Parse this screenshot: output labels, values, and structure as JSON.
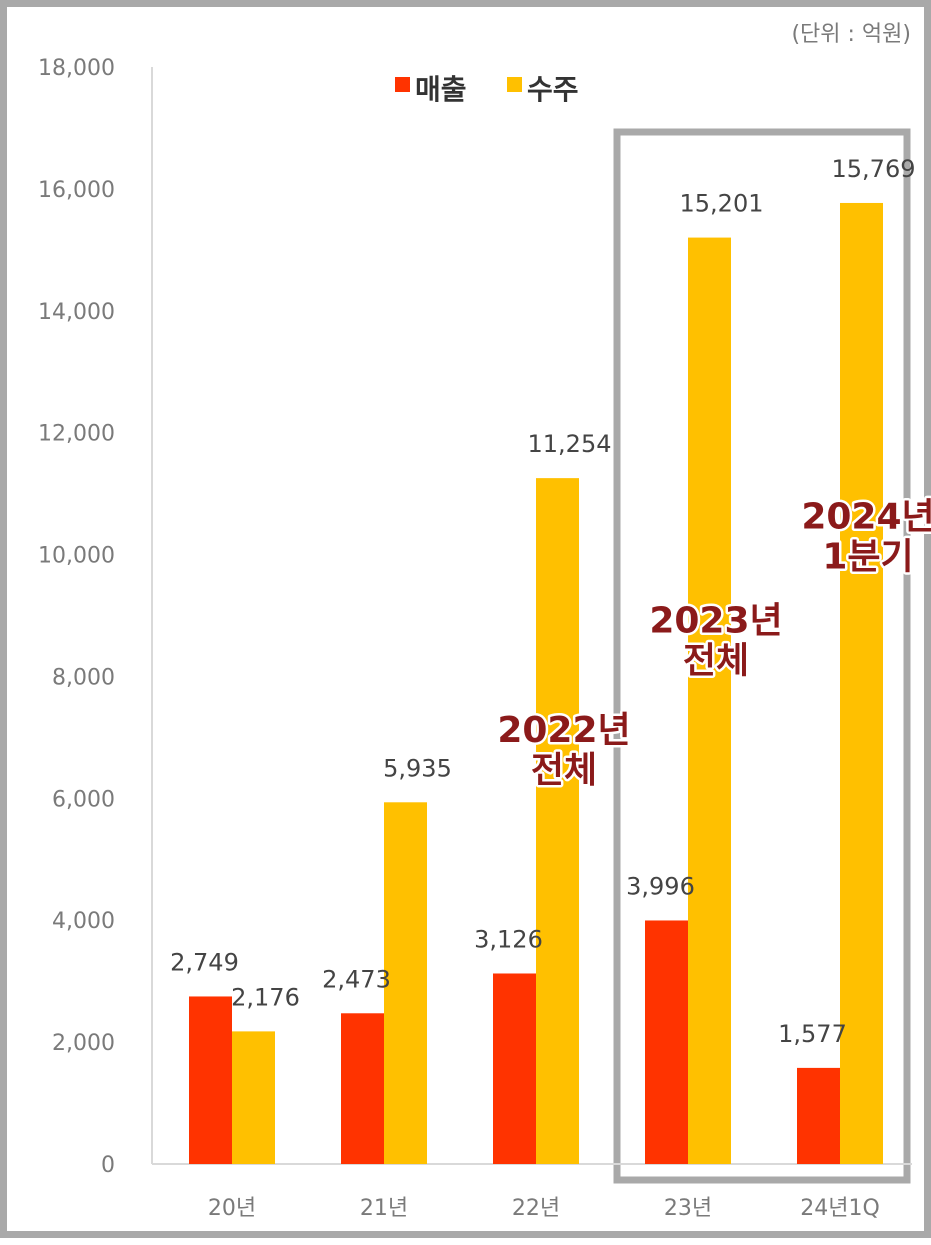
{
  "chart_data": {
    "type": "bar",
    "unit": "(단위 : 억원)",
    "categories": [
      "20년",
      "21년",
      "22년",
      "23년",
      "24년1Q"
    ],
    "series": [
      {
        "name": "매출",
        "color": "#ff3300",
        "values": [
          2749,
          2473,
          3126,
          3996,
          1577
        ],
        "labels": [
          "2,749",
          "2,473",
          "3,126",
          "3,996",
          "1,577"
        ]
      },
      {
        "name": "수주",
        "color": "#ffc000",
        "values": [
          2176,
          5935,
          11254,
          15201,
          15769
        ],
        "labels": [
          "2,176",
          "5,935",
          "11,254",
          "15,201",
          "15,769"
        ]
      }
    ],
    "ylim": [
      0,
      18000
    ],
    "yticks": [
      0,
      2000,
      4000,
      6000,
      8000,
      10000,
      12000,
      14000,
      16000,
      18000
    ],
    "ytick_labels": [
      "0",
      "2,000",
      "4,000",
      "6,000",
      "8,000",
      "10,000",
      "12,000",
      "14,000",
      "16,000",
      "18,000"
    ],
    "legend_position": "top-center",
    "grid": false,
    "highlight_box_categories": [
      "23년",
      "24년1Q"
    ],
    "highlight_box_color": "#a9a9a9",
    "annotations": [
      {
        "category": "22년",
        "lines": [
          "2022년",
          "전체"
        ],
        "value": 6400,
        "color": "#8b1a1a"
      },
      {
        "category": "23년",
        "lines": [
          "2023년",
          "전체"
        ],
        "value": 8200,
        "color": "#8b1a1a"
      },
      {
        "category": "24년1Q",
        "lines": [
          "2024년",
          "1분기"
        ],
        "value": 9900,
        "color": "#8b1a1a"
      }
    ]
  }
}
